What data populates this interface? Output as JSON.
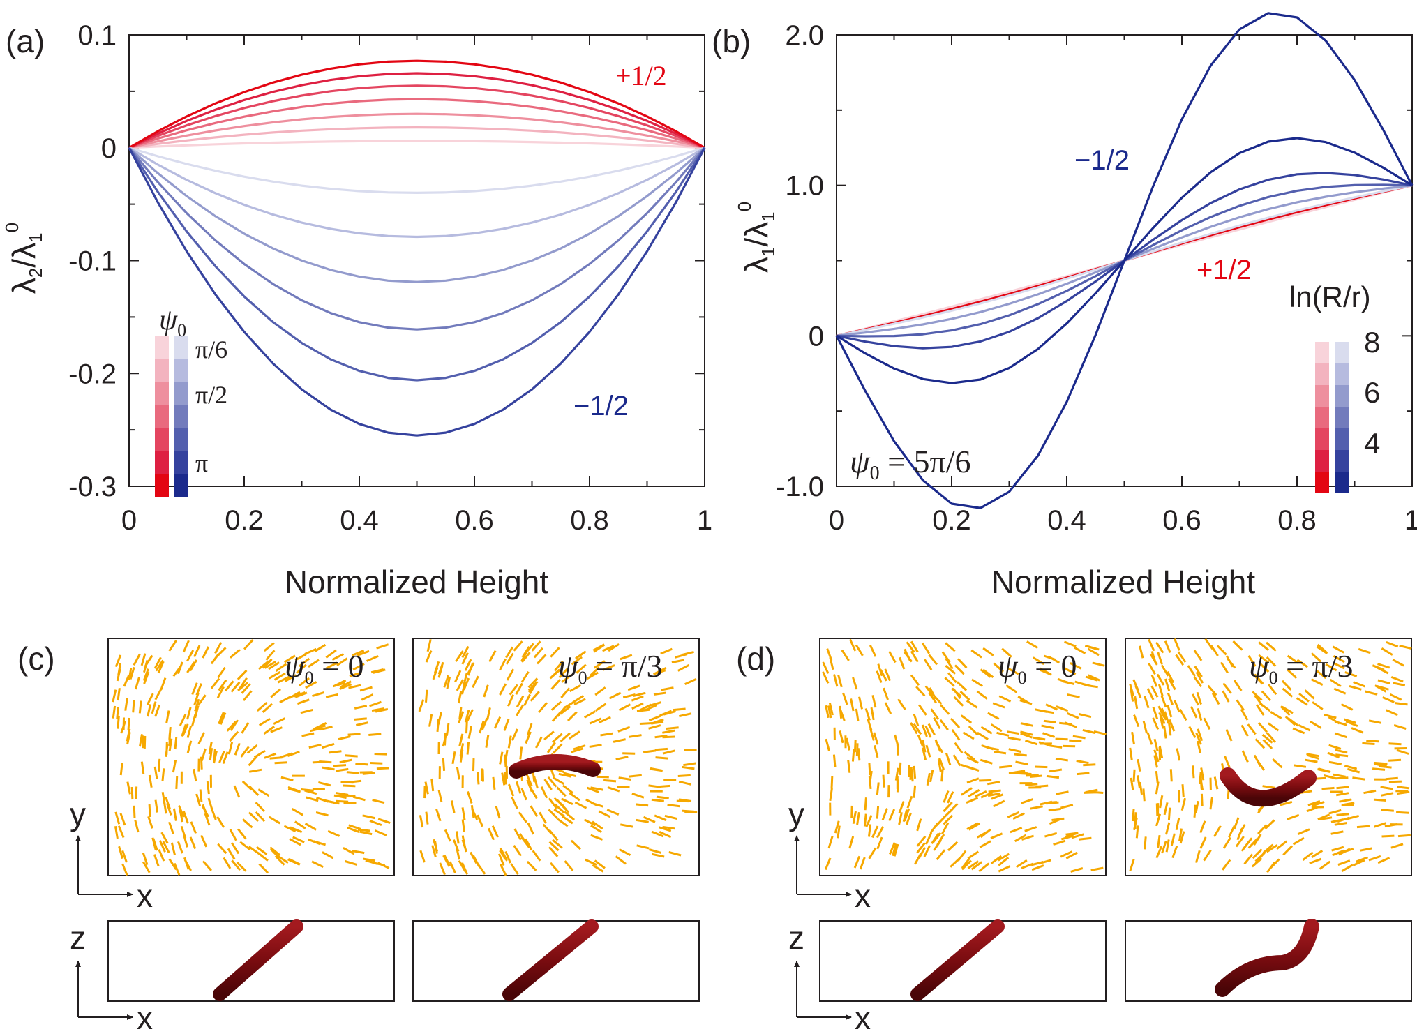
{
  "colors": {
    "red_ramp": [
      "#f8d3da",
      "#f3b3bf",
      "#ee8f9e",
      "#e96a7e",
      "#e44560",
      "#de2042",
      "#e30613"
    ],
    "blue_ramp": [
      "#d9dcee",
      "#b6bbdf",
      "#939bcd",
      "#727bbc",
      "#535fae",
      "#35429e",
      "#1b2a8c"
    ],
    "axis": "#231f20",
    "director": "#f6a800",
    "rod": "#7a0c10"
  },
  "chart_data": [
    {
      "panel": "(a)",
      "type": "line",
      "xlabel": "Normalized Height",
      "ylabel_main": "λ",
      "ylabel_sub1": "2",
      "ylabel_mid": "/λ",
      "ylabel_sub2": "1",
      "ylabel_sup": "0",
      "xlim": [
        0,
        1
      ],
      "ylim": [
        -0.3,
        0.1
      ],
      "xticks": [
        "0",
        "0.2",
        "0.4",
        "0.6",
        "0.8",
        "1"
      ],
      "yticks": [
        "-0.3",
        "-0.2",
        "-0.1",
        "0",
        "0.1"
      ],
      "ytick_values": [
        -0.3,
        -0.2,
        -0.1,
        0,
        0.1
      ],
      "x": [
        0,
        0.05,
        0.1,
        0.15,
        0.2,
        0.25,
        0.3,
        0.35,
        0.4,
        0.45,
        0.5,
        0.55,
        0.6,
        0.65,
        0.7,
        0.75,
        0.8,
        0.85,
        0.9,
        0.95,
        1
      ],
      "series": [
        {
          "name": "+1/2 ψ0 level 1",
          "group": "plus",
          "shade": 0,
          "peak": 0.006
        },
        {
          "name": "+1/2 ψ0 level 2",
          "group": "plus",
          "shade": 1,
          "peak": 0.018
        },
        {
          "name": "+1/2 ψ0 level 3",
          "group": "plus",
          "shade": 2,
          "peak": 0.03
        },
        {
          "name": "+1/2 ψ0 level 4",
          "group": "plus",
          "shade": 3,
          "peak": 0.043
        },
        {
          "name": "+1/2 ψ0 level 5",
          "group": "plus",
          "shade": 4,
          "peak": 0.055
        },
        {
          "name": "+1/2 ψ0 level 6",
          "group": "plus",
          "shade": 5,
          "peak": 0.066
        },
        {
          "name": "+1/2 ψ0 = π",
          "group": "plus",
          "shade": 6,
          "peak": 0.077
        },
        {
          "name": "-1/2 ψ0 level 1",
          "group": "minus",
          "shade": 0,
          "peak": -0.04
        },
        {
          "name": "-1/2 ψ0 level 2",
          "group": "minus",
          "shade": 1,
          "peak": -0.079
        },
        {
          "name": "-1/2 ψ0 level 3",
          "group": "minus",
          "shade": 2,
          "peak": -0.119
        },
        {
          "name": "-1/2 ψ0 level 4",
          "group": "minus",
          "shade": 3,
          "peak": -0.161
        },
        {
          "name": "-1/2 ψ0 level 5",
          "group": "minus",
          "shade": 4,
          "peak": -0.206
        },
        {
          "name": "-1/2 ψ0 = π",
          "group": "minus",
          "shade": 5,
          "peak": -0.255
        }
      ],
      "annotations": {
        "plus": "+1/2",
        "minus": "−1/2"
      },
      "legend": {
        "title_main": "ψ",
        "title_sub": "0",
        "labels": [
          "π/6",
          "π/2",
          "π"
        ],
        "placement": "bottom-left"
      }
    },
    {
      "panel": "(b)",
      "type": "line",
      "xlabel": "Normalized Height",
      "ylabel_main": "λ",
      "ylabel_sub1": "1",
      "ylabel_mid": "/λ",
      "ylabel_sub2": "1",
      "ylabel_sup": "0",
      "xlim": [
        0,
        1
      ],
      "ylim": [
        -1.0,
        2.0
      ],
      "xticks": [
        "0",
        "0.2",
        "0.4",
        "0.6",
        "0.8",
        "1"
      ],
      "yticks": [
        "-1.0",
        "0",
        "1.0",
        "2.0"
      ],
      "ytick_values": [
        -1.0,
        0,
        1.0,
        2.0
      ],
      "x": [
        0,
        0.05,
        0.1,
        0.15,
        0.2,
        0.25,
        0.3,
        0.35,
        0.4,
        0.45,
        0.5,
        0.55,
        0.6,
        0.65,
        0.7,
        0.75,
        0.8,
        0.85,
        0.9,
        0.95,
        1
      ],
      "series": [
        {
          "name": "+1/2 ln(R/r) = 8",
          "group": "plus",
          "shade": 0,
          "amp": 0.003
        },
        {
          "name": "+1/2 ln(R/r) = 4",
          "group": "plus",
          "shade": 6,
          "amp": 0.01
        },
        {
          "name": "-1/2 level 1",
          "group": "minus",
          "shade": 0,
          "amp": 0.015
        },
        {
          "name": "-1/2 level 2",
          "group": "minus",
          "shade": 2,
          "amp": 0.04
        },
        {
          "name": "-1/2 level 3",
          "group": "minus",
          "shade": 4,
          "amp": 0.075
        },
        {
          "name": "-1/2 level 4",
          "group": "minus",
          "shade": 5,
          "amp": 0.125
        },
        {
          "name": "-1/2 level 5",
          "group": "minus",
          "shade": 6,
          "amp": 0.235
        },
        {
          "name": "-1/2 ln(R/r) = 4",
          "group": "minus",
          "shade": 6,
          "amp": 1.0
        }
      ],
      "annotations": {
        "plus": "+1/2",
        "minus": "−1/2",
        "psi_main": "ψ",
        "psi_sub": "0",
        "psi_value": " = 5π/6"
      },
      "legend": {
        "title": "ln(R/r)",
        "labels": [
          "8",
          "6",
          "4"
        ],
        "placement": "right"
      }
    }
  ],
  "panels_cd": {
    "labels": [
      "(c)",
      "(d)"
    ],
    "psi_main": "ψ",
    "psi_sub": "0",
    "psi_values": [
      " = 0",
      " = π/3"
    ],
    "axes": {
      "x": "x",
      "y": "y",
      "z": "z"
    }
  }
}
